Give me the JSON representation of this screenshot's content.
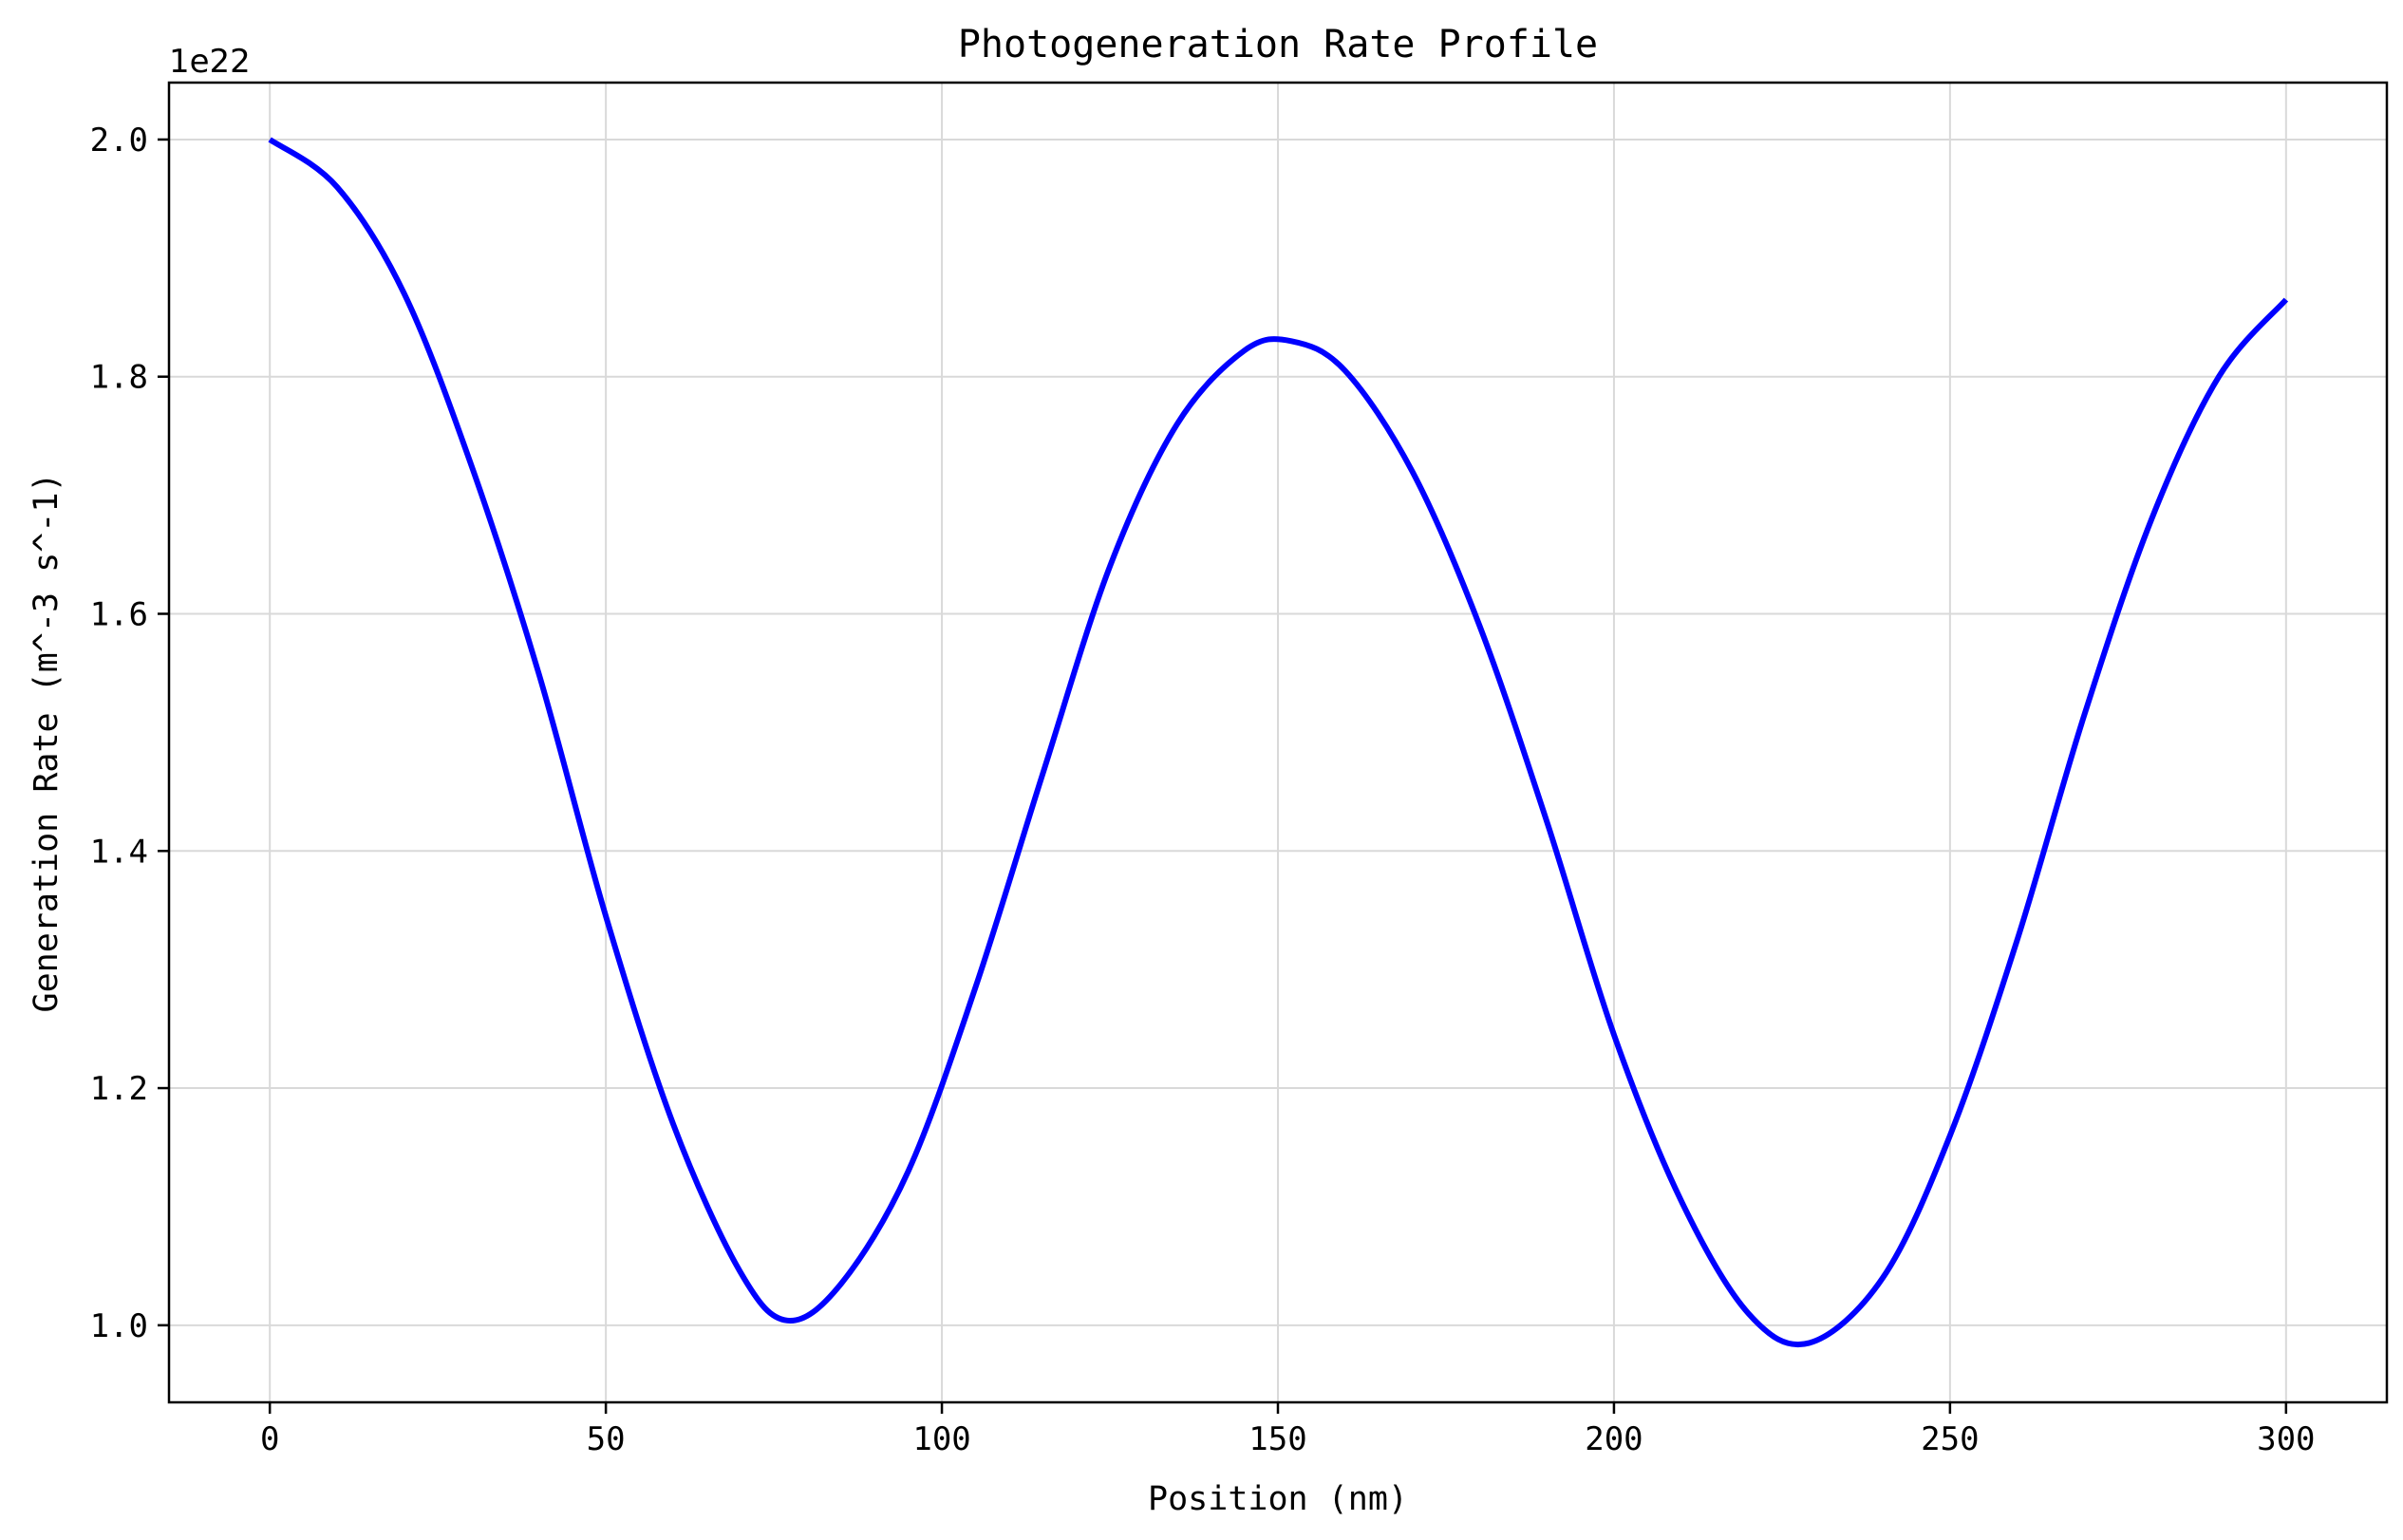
{
  "chart_data": {
    "type": "line",
    "title": "Photogeneration Rate Profile",
    "xlabel": "Position (nm)",
    "ylabel": "Generation Rate (m^-3 s^-1)",
    "y_offset_label": "1e22",
    "y_scale_factor": 1e+22,
    "xlim": [
      -15,
      315
    ],
    "ylim": [
      0.935,
      2.048
    ],
    "x_ticks": [
      0,
      50,
      100,
      150,
      200,
      250,
      300
    ],
    "x_tick_labels": [
      "0",
      "50",
      "100",
      "150",
      "200",
      "250",
      "300"
    ],
    "y_ticks": [
      1.0,
      1.2,
      1.4,
      1.6,
      1.8,
      2.0
    ],
    "y_tick_labels": [
      "1.0",
      "1.2",
      "1.4",
      "1.6",
      "1.8",
      "2.0"
    ],
    "grid": true,
    "legend": "none",
    "series": [
      {
        "color": "#0000ff",
        "x": [
          0,
          10,
          20,
          30,
          40,
          50,
          60,
          70,
          77,
          85,
          95,
          105,
          115,
          125,
          135,
          145,
          152,
          160,
          170,
          180,
          190,
          200,
          210,
          220,
          229,
          240,
          250,
          260,
          270,
          280,
          290,
          300
        ],
        "y": [
          2.0,
          1.96,
          1.87,
          1.725,
          1.55,
          1.345,
          1.17,
          1.045,
          1.004,
          1.035,
          1.13,
          1.285,
          1.465,
          1.64,
          1.76,
          1.822,
          1.83,
          1.805,
          1.72,
          1.59,
          1.425,
          1.245,
          1.105,
          1.01,
          0.985,
          1.04,
          1.16,
          1.325,
          1.515,
          1.68,
          1.8,
          1.865
        ]
      }
    ]
  }
}
